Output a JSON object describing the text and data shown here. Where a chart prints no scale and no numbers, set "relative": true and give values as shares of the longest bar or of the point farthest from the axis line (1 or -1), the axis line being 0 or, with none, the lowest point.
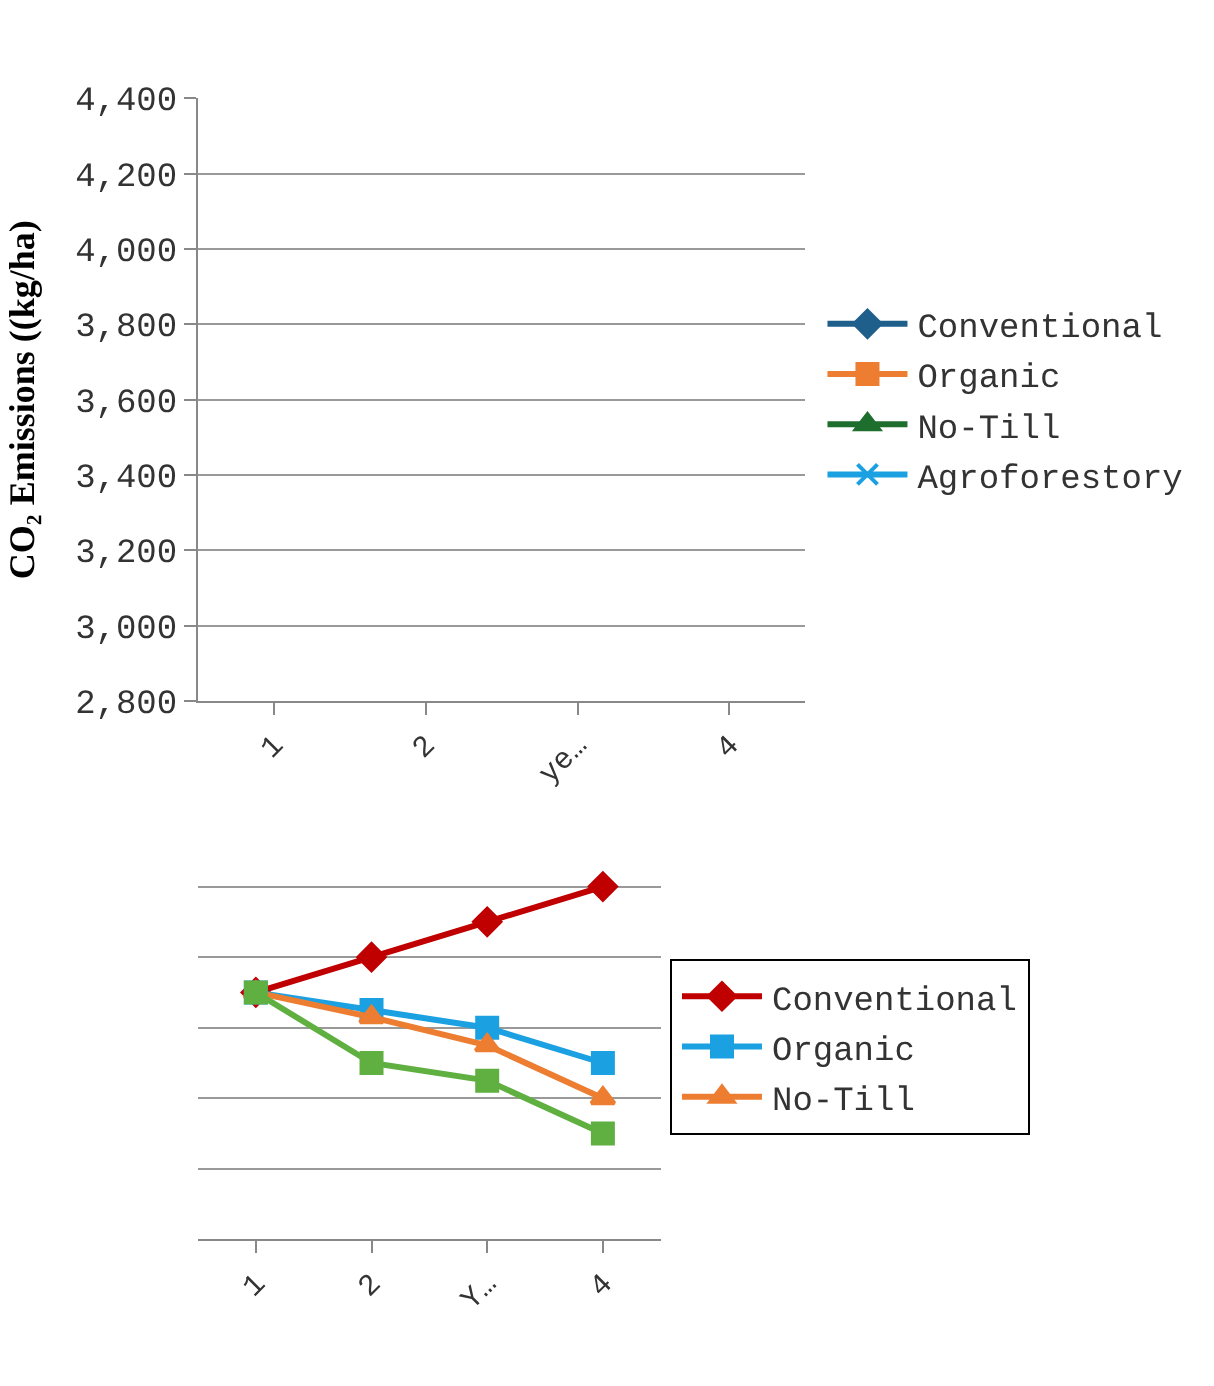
{
  "chart_data": [
    {
      "type": "line",
      "ylabel": "CO₂ Emissions ((kg/ha)",
      "categories": [
        "1",
        "2",
        "ye…",
        "4"
      ],
      "ylim": [
        2800,
        4400
      ],
      "yticks": [
        {
          "value": 2800,
          "label": "2,800"
        },
        {
          "value": 3000,
          "label": "3,000"
        },
        {
          "value": 3200,
          "label": "3,200"
        },
        {
          "value": 3400,
          "label": "3,400"
        },
        {
          "value": 3600,
          "label": "3,600"
        },
        {
          "value": 3800,
          "label": "3,800"
        },
        {
          "value": 4000,
          "label": "4,000"
        },
        {
          "value": 4200,
          "label": "4,200"
        },
        {
          "value": 4400,
          "label": "4,400"
        }
      ],
      "grid": "y",
      "legend": "right",
      "series": [
        {
          "name": "Conventional",
          "color": "#1f5f8b",
          "marker": "diamond",
          "values": [
            null,
            null,
            null,
            null
          ]
        },
        {
          "name": "Organic",
          "color": "#ed7d31",
          "marker": "square",
          "values": [
            null,
            null,
            null,
            null
          ]
        },
        {
          "name": "No-Till",
          "color": "#1e6e2e",
          "marker": "triangle",
          "values": [
            null,
            null,
            null,
            null
          ]
        },
        {
          "name": "Agroforestory",
          "color": "#1ba1e2",
          "marker": "cross",
          "values": [
            null,
            null,
            null,
            null
          ]
        }
      ]
    },
    {
      "type": "line",
      "relative": true,
      "categories": [
        "1",
        "2",
        "Y…",
        "4"
      ],
      "grid": "y",
      "legend": "right",
      "tick_labels": "x",
      "series": [
        {
          "name": "Conventional",
          "color": "#c00000",
          "marker": "diamond",
          "values": [
            0.7,
            0.8,
            0.9,
            1.0
          ]
        },
        {
          "name": "Organic",
          "color": "#1ba1e2",
          "marker": "square",
          "values": [
            0.7,
            0.65,
            0.6,
            0.5
          ]
        },
        {
          "name": "No-Till",
          "color": "#ed7d31",
          "marker": "triangle",
          "values": [
            0.7,
            0.63,
            0.55,
            0.4
          ]
        },
        {
          "color": "#5fb040",
          "marker": "square",
          "values": [
            0.7,
            0.5,
            0.45,
            0.3
          ]
        }
      ]
    }
  ]
}
